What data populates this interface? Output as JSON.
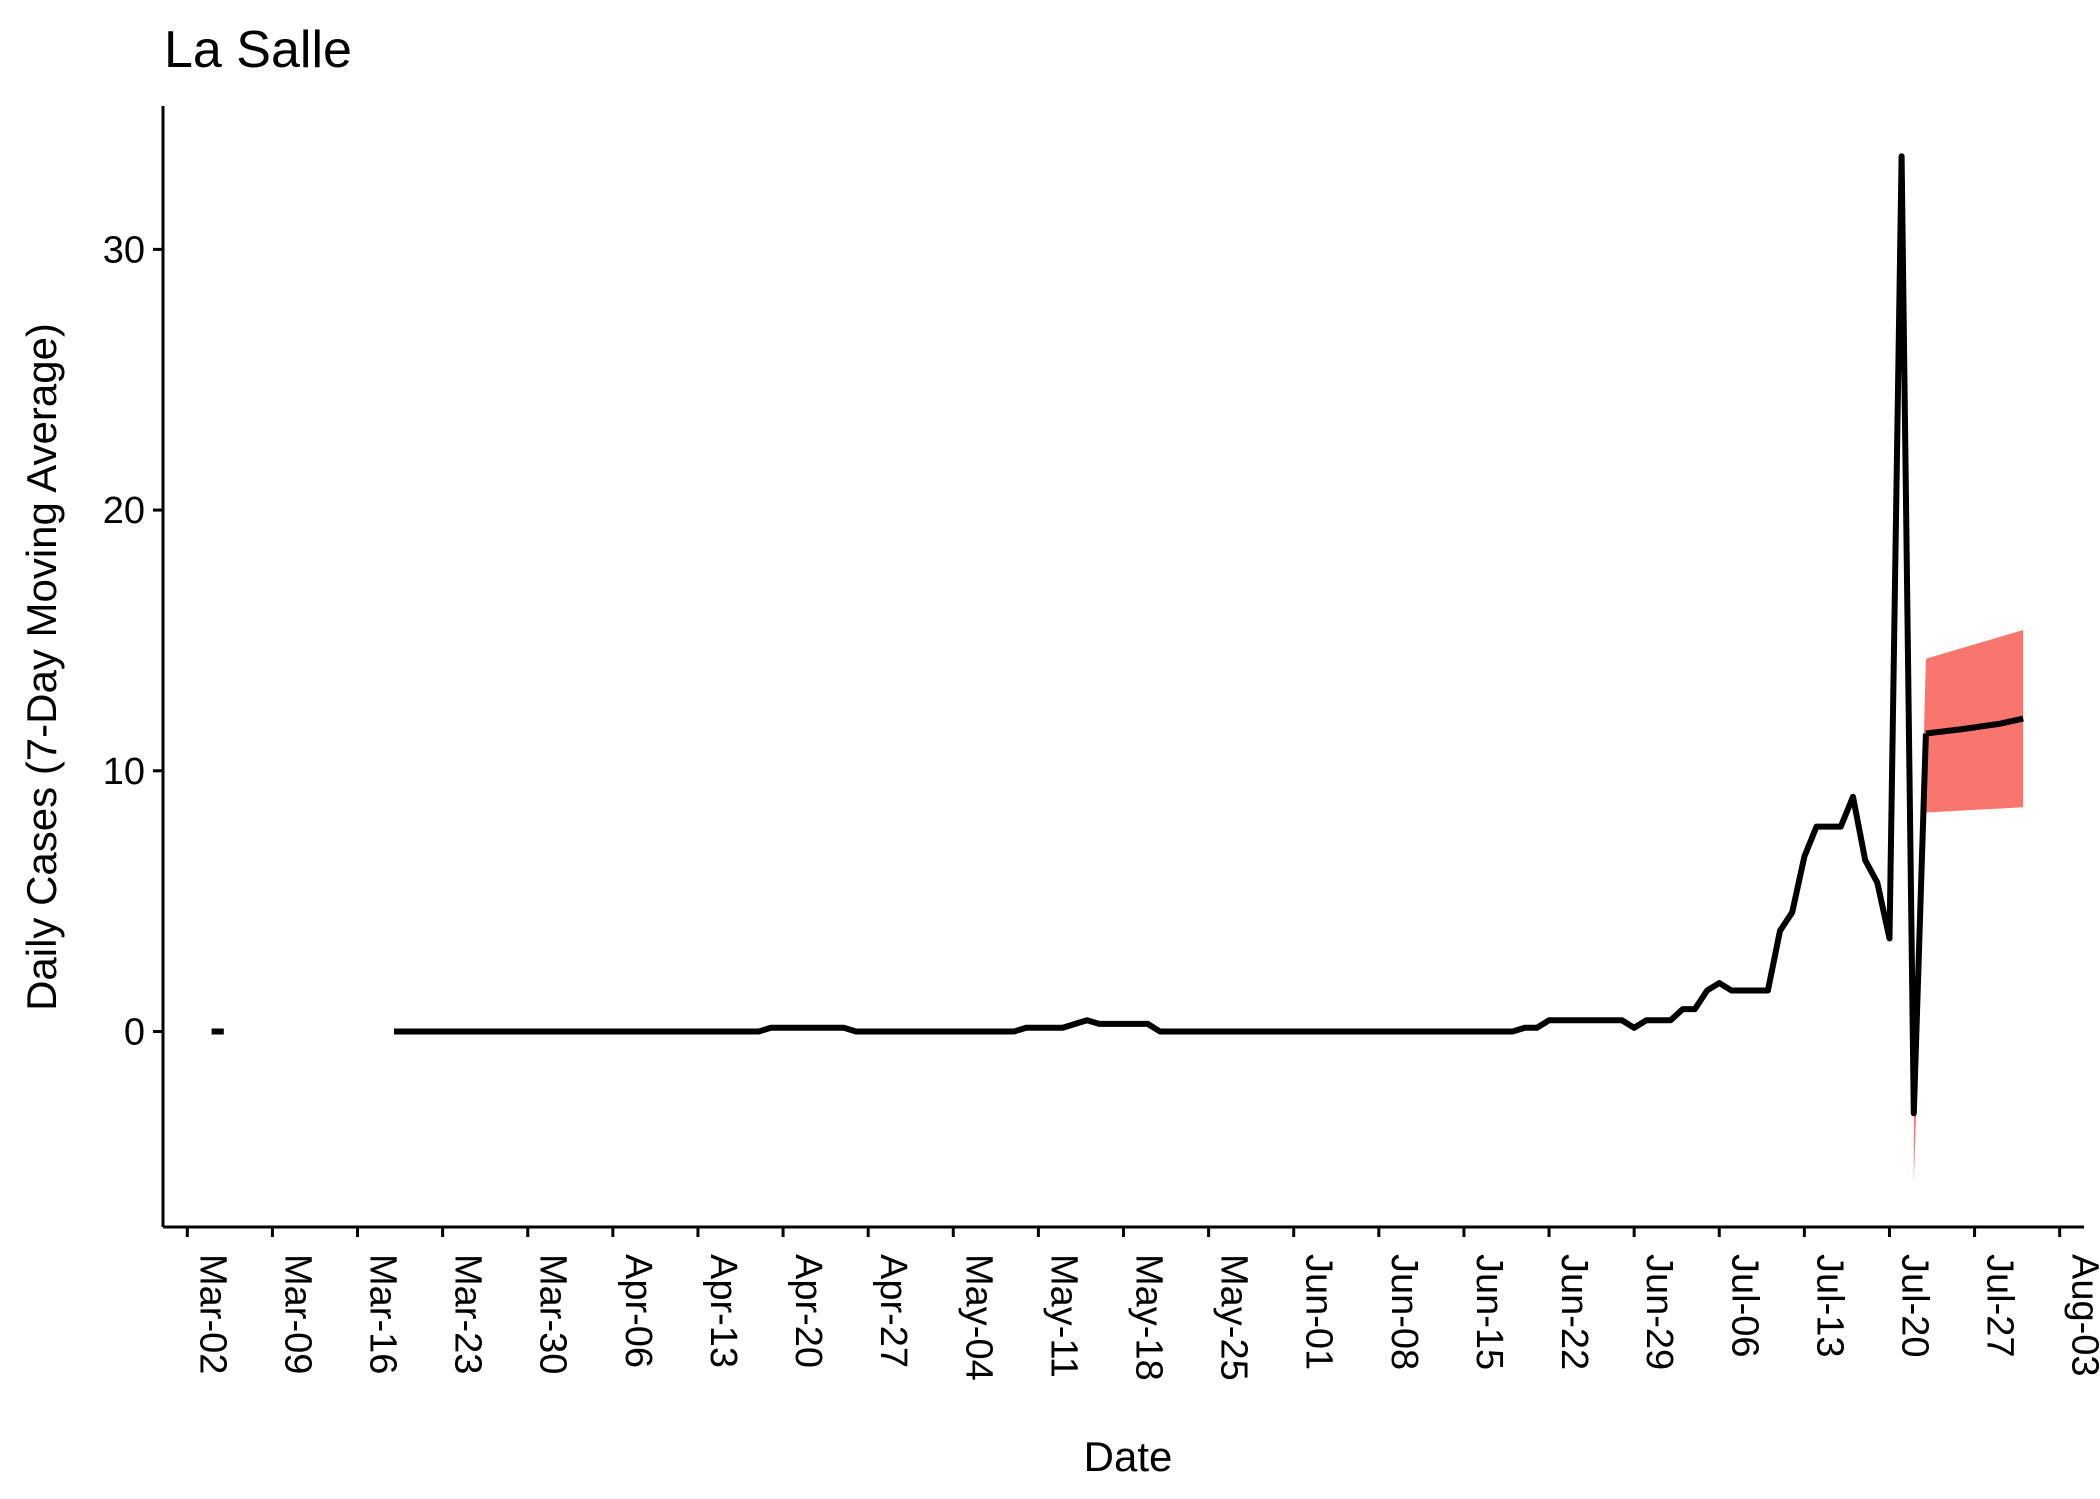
{
  "chart_data": {
    "type": "line",
    "title": "La Salle",
    "xlabel": "Date",
    "ylabel": "Daily Cases (7-Day Moving Average)",
    "x_tick_labels": [
      "Mar-02",
      "Mar-09",
      "Mar-16",
      "Mar-23",
      "Mar-30",
      "Apr-06",
      "Apr-13",
      "Apr-20",
      "Apr-27",
      "May-04",
      "May-11",
      "May-18",
      "May-25",
      "Jun-01",
      "Jun-08",
      "Jun-15",
      "Jun-22",
      "Jun-29",
      "Jul-06",
      "Jul-13",
      "Jul-20",
      "Jul-27",
      "Aug-03"
    ],
    "x_tick_dates": [
      "2020-03-02",
      "2020-03-09",
      "2020-03-16",
      "2020-03-23",
      "2020-03-30",
      "2020-04-06",
      "2020-04-13",
      "2020-04-20",
      "2020-04-27",
      "2020-05-04",
      "2020-05-11",
      "2020-05-18",
      "2020-05-25",
      "2020-06-01",
      "2020-06-08",
      "2020-06-15",
      "2020-06-22",
      "2020-06-29",
      "2020-07-06",
      "2020-07-13",
      "2020-07-20",
      "2020-07-27",
      "2020-08-03"
    ],
    "y_ticks": [
      0,
      10,
      20,
      30
    ],
    "xlim": [
      "2020-02-29",
      "2020-08-05"
    ],
    "ylim": [
      -7.5,
      35.5
    ],
    "grid": false,
    "line_color": "#000000",
    "ribbon_color": "#f8766d",
    "segments": [
      [
        [
          "2020-03-04",
          0
        ],
        [
          "2020-03-05",
          0
        ]
      ],
      [
        [
          "2020-03-19",
          0
        ],
        [
          "2020-03-26",
          0
        ],
        [
          "2020-04-02",
          0
        ],
        [
          "2020-04-09",
          0
        ],
        [
          "2020-04-16",
          0
        ],
        [
          "2020-04-18",
          0
        ],
        [
          "2020-04-19",
          0.14
        ],
        [
          "2020-04-25",
          0.14
        ],
        [
          "2020-04-26",
          0
        ],
        [
          "2020-05-01",
          0
        ],
        [
          "2020-05-08",
          0
        ],
        [
          "2020-05-09",
          0
        ],
        [
          "2020-05-10",
          0.14
        ],
        [
          "2020-05-13",
          0.14
        ],
        [
          "2020-05-15",
          0.43
        ],
        [
          "2020-05-16",
          0.29
        ],
        [
          "2020-05-18",
          0.29
        ],
        [
          "2020-05-20",
          0.29
        ],
        [
          "2020-05-21",
          0
        ],
        [
          "2020-05-28",
          0
        ],
        [
          "2020-06-04",
          0
        ],
        [
          "2020-06-11",
          0
        ],
        [
          "2020-06-18",
          0
        ],
        [
          "2020-06-19",
          0
        ],
        [
          "2020-06-20",
          0.14
        ],
        [
          "2020-06-21",
          0.14
        ],
        [
          "2020-06-22",
          0.43
        ],
        [
          "2020-06-24",
          0.43
        ],
        [
          "2020-06-26",
          0.43
        ],
        [
          "2020-06-28",
          0.43
        ],
        [
          "2020-06-29",
          0.14
        ],
        [
          "2020-06-30",
          0.43
        ],
        [
          "2020-07-02",
          0.43
        ],
        [
          "2020-07-03",
          0.86
        ],
        [
          "2020-07-04",
          0.86
        ],
        [
          "2020-07-05",
          1.57
        ],
        [
          "2020-07-06",
          1.86
        ],
        [
          "2020-07-07",
          1.57
        ],
        [
          "2020-07-09",
          1.57
        ],
        [
          "2020-07-10",
          1.57
        ],
        [
          "2020-07-11",
          3.86
        ],
        [
          "2020-07-12",
          4.57
        ],
        [
          "2020-07-13",
          6.71
        ],
        [
          "2020-07-14",
          7.86
        ],
        [
          "2020-07-16",
          7.86
        ],
        [
          "2020-07-17",
          9.0
        ],
        [
          "2020-07-18",
          6.57
        ],
        [
          "2020-07-19",
          5.71
        ],
        [
          "2020-07-20",
          3.57
        ],
        [
          "2020-07-21",
          33.57
        ],
        [
          "2020-07-22",
          -3.14
        ],
        [
          "2020-07-23",
          11.43
        ]
      ],
      [
        [
          "2020-07-23",
          11.43
        ],
        [
          "2020-07-26",
          11.6
        ],
        [
          "2020-07-29",
          11.8
        ],
        [
          "2020-07-31",
          12.0
        ]
      ]
    ],
    "ribbon": {
      "upper": [
        [
          "2020-07-22",
          -3.5
        ],
        [
          "2020-07-23",
          14.3
        ],
        [
          "2020-07-31",
          15.4
        ]
      ],
      "lower": [
        [
          "2020-07-22",
          -5.8
        ],
        [
          "2020-07-23",
          8.4
        ],
        [
          "2020-07-31",
          8.6
        ]
      ]
    }
  }
}
